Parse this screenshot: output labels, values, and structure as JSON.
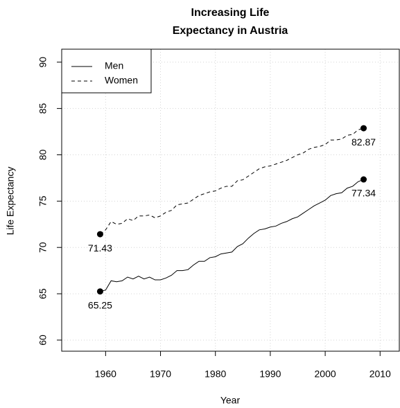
{
  "chart_data": {
    "type": "line",
    "title": [
      "Increasing Life",
      "Expectancy in Austria"
    ],
    "x_label": "Year",
    "y_label": "Life Expectancy",
    "x": [
      1959,
      1960,
      1961,
      1962,
      1963,
      1964,
      1965,
      1966,
      1967,
      1968,
      1969,
      1970,
      1971,
      1972,
      1973,
      1974,
      1975,
      1976,
      1977,
      1978,
      1979,
      1980,
      1981,
      1982,
      1983,
      1984,
      1985,
      1986,
      1987,
      1988,
      1989,
      1990,
      1991,
      1992,
      1993,
      1994,
      1995,
      1996,
      1997,
      1998,
      1999,
      2000,
      2001,
      2002,
      2003,
      2004,
      2005,
      2006,
      2007
    ],
    "series": [
      {
        "name": "Men",
        "color": "#000000",
        "dash": "solid",
        "values": [
          65.25,
          65.4,
          66.4,
          66.3,
          66.4,
          66.8,
          66.6,
          66.9,
          66.6,
          66.8,
          66.5,
          66.5,
          66.7,
          67.0,
          67.5,
          67.5,
          67.6,
          68.1,
          68.5,
          68.5,
          68.9,
          69.0,
          69.3,
          69.4,
          69.5,
          70.1,
          70.4,
          71.0,
          71.5,
          71.9,
          72.0,
          72.2,
          72.3,
          72.6,
          72.8,
          73.1,
          73.3,
          73.7,
          74.1,
          74.5,
          74.8,
          75.1,
          75.6,
          75.8,
          75.9,
          76.4,
          76.6,
          77.1,
          77.34
        ]
      },
      {
        "name": "Women",
        "color": "#000000",
        "dash": "dashed",
        "values": [
          71.43,
          71.9,
          72.8,
          72.5,
          72.6,
          73.1,
          72.9,
          73.4,
          73.4,
          73.5,
          73.2,
          73.4,
          73.8,
          74.0,
          74.6,
          74.7,
          74.8,
          75.2,
          75.6,
          75.8,
          76.0,
          76.1,
          76.4,
          76.6,
          76.6,
          77.2,
          77.3,
          77.7,
          78.1,
          78.5,
          78.7,
          78.8,
          79.0,
          79.2,
          79.4,
          79.7,
          80.0,
          80.2,
          80.6,
          80.8,
          80.9,
          81.1,
          81.6,
          81.6,
          81.7,
          82.1,
          82.2,
          82.7,
          82.87
        ]
      }
    ],
    "points": [
      {
        "x": 1959,
        "y": 65.25,
        "label": "65.25"
      },
      {
        "x": 1959,
        "y": 71.43,
        "label": "71.43"
      },
      {
        "x": 2007,
        "y": 82.87,
        "label": "82.87"
      },
      {
        "x": 2007,
        "y": 77.34,
        "label": "77.34"
      }
    ],
    "xlim": [
      1952,
      2013.5
    ],
    "ylim": [
      58.8,
      91.4
    ],
    "xticks": [
      1960,
      1970,
      1980,
      1990,
      2000,
      2010
    ],
    "yticks": [
      60,
      65,
      70,
      75,
      80,
      85,
      90
    ],
    "grid": true,
    "legend": "topleft"
  }
}
